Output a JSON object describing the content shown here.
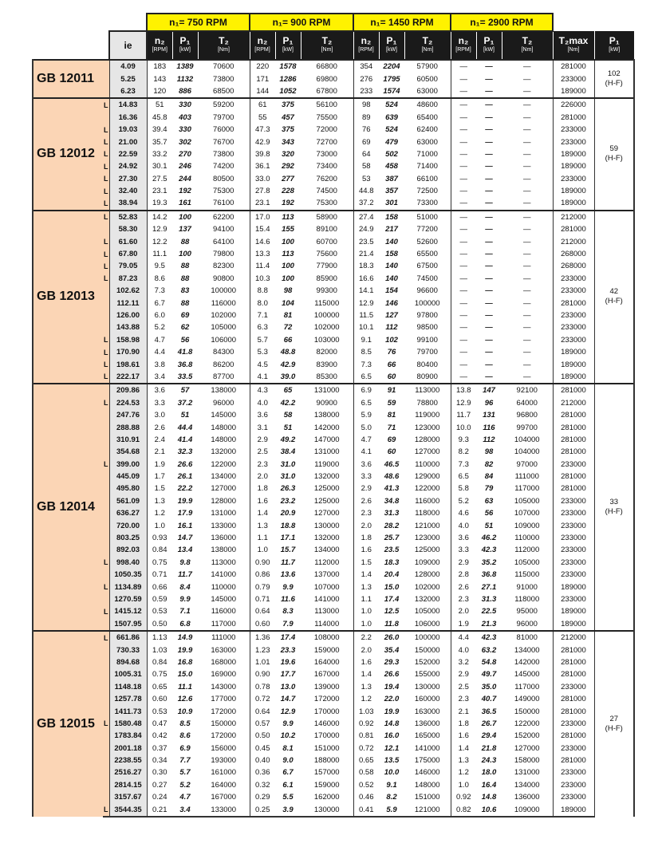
{
  "header": {
    "rpm_groups": [
      {
        "prefix": "n₁= ",
        "value": "750",
        "unit": " RPM"
      },
      {
        "prefix": "n₁= ",
        "value": "900",
        "unit": " RPM"
      },
      {
        "prefix": "n₁= ",
        "value": "1450",
        "unit": " RPM"
      },
      {
        "prefix": "n₁= ",
        "value": "2900",
        "unit": " RPM"
      }
    ],
    "ie": "ie",
    "sub": [
      {
        "label": "n₂",
        "unit": "[RPM]"
      },
      {
        "label": "P₁",
        "unit": "[kW]"
      },
      {
        "label": "T₂",
        "unit": "[Nm]"
      }
    ],
    "t2max": {
      "label": "T₂max",
      "unit": "[Nm]"
    },
    "pt": {
      "label": "P₁",
      "unit": "[kW]"
    }
  },
  "groups": [
    {
      "name": "GB 12011",
      "pt": "102",
      "pt_note": "(H-F)",
      "rows": [
        [
          "",
          "4.09",
          "183",
          "1389",
          "70600",
          "220",
          "1578",
          "66800",
          "354",
          "2204",
          "57900",
          "—",
          "—",
          "—",
          "281000"
        ],
        [
          "",
          "5.25",
          "143",
          "1132",
          "73800",
          "171",
          "1286",
          "69800",
          "276",
          "1795",
          "60500",
          "—",
          "—",
          "—",
          "233000"
        ],
        [
          "",
          "6.23",
          "120",
          "886",
          "68500",
          "144",
          "1052",
          "67800",
          "233",
          "1574",
          "63000",
          "—",
          "—",
          "—",
          "189000"
        ]
      ]
    },
    {
      "name": "GB 12012",
      "pt": "59",
      "pt_note": "(H-F)",
      "rows": [
        [
          "L",
          "14.83",
          "51",
          "330",
          "59200",
          "61",
          "375",
          "56100",
          "98",
          "524",
          "48600",
          "—",
          "—",
          "—",
          "226000"
        ],
        [
          "",
          "16.36",
          "45.8",
          "403",
          "79700",
          "55",
          "457",
          "75500",
          "89",
          "639",
          "65400",
          "—",
          "—",
          "—",
          "281000"
        ],
        [
          "L",
          "19.03",
          "39.4",
          "330",
          "76000",
          "47.3",
          "375",
          "72000",
          "76",
          "524",
          "62400",
          "—",
          "—",
          "—",
          "233000"
        ],
        [
          "L",
          "21.00",
          "35.7",
          "302",
          "76700",
          "42.9",
          "343",
          "72700",
          "69",
          "479",
          "63000",
          "—",
          "—",
          "—",
          "233000"
        ],
        [
          "L",
          "22.59",
          "33.2",
          "270",
          "73800",
          "39.8",
          "320",
          "73000",
          "64",
          "502",
          "71000",
          "—",
          "—",
          "—",
          "189000"
        ],
        [
          "L",
          "24.92",
          "30.1",
          "246",
          "74200",
          "36.1",
          "292",
          "73400",
          "58",
          "458",
          "71400",
          "—",
          "—",
          "—",
          "189000"
        ],
        [
          "L",
          "27.30",
          "27.5",
          "244",
          "80500",
          "33.0",
          "277",
          "76200",
          "53",
          "387",
          "66100",
          "—",
          "—",
          "—",
          "233000"
        ],
        [
          "L",
          "32.40",
          "23.1",
          "192",
          "75300",
          "27.8",
          "228",
          "74500",
          "44.8",
          "357",
          "72500",
          "—",
          "—",
          "—",
          "189000"
        ],
        [
          "L",
          "38.94",
          "19.3",
          "161",
          "76100",
          "23.1",
          "192",
          "75300",
          "37.2",
          "301",
          "73300",
          "—",
          "—",
          "—",
          "189000"
        ]
      ]
    },
    {
      "name": "GB 12013",
      "pt": "42",
      "pt_note": "(H-F)",
      "rows": [
        [
          "L",
          "52.83",
          "14.2",
          "100",
          "62200",
          "17.0",
          "113",
          "58900",
          "27.4",
          "158",
          "51000",
          "—",
          "—",
          "—",
          "212000"
        ],
        [
          "",
          "58.30",
          "12.9",
          "137",
          "94100",
          "15.4",
          "155",
          "89100",
          "24.9",
          "217",
          "77200",
          "—",
          "—",
          "—",
          "281000"
        ],
        [
          "L",
          "61.60",
          "12.2",
          "88",
          "64100",
          "14.6",
          "100",
          "60700",
          "23.5",
          "140",
          "52600",
          "—",
          "—",
          "—",
          "212000"
        ],
        [
          "L",
          "67.80",
          "11.1",
          "100",
          "79800",
          "13.3",
          "113",
          "75600",
          "21.4",
          "158",
          "65500",
          "—",
          "—",
          "—",
          "268000"
        ],
        [
          "L",
          "79.05",
          "9.5",
          "88",
          "82300",
          "11.4",
          "100",
          "77900",
          "18.3",
          "140",
          "67500",
          "—",
          "—",
          "—",
          "268000"
        ],
        [
          "L",
          "87.23",
          "8.6",
          "88",
          "90800",
          "10.3",
          "100",
          "85900",
          "16.6",
          "140",
          "74500",
          "—",
          "—",
          "—",
          "233000"
        ],
        [
          "",
          "102.62",
          "7.3",
          "83",
          "100000",
          "8.8",
          "98",
          "99300",
          "14.1",
          "154",
          "96600",
          "—",
          "—",
          "—",
          "233000"
        ],
        [
          "",
          "112.11",
          "6.7",
          "88",
          "116000",
          "8.0",
          "104",
          "115000",
          "12.9",
          "146",
          "100000",
          "—",
          "—",
          "—",
          "281000"
        ],
        [
          "",
          "126.00",
          "6.0",
          "69",
          "102000",
          "7.1",
          "81",
          "100000",
          "11.5",
          "127",
          "97800",
          "—",
          "—",
          "—",
          "233000"
        ],
        [
          "",
          "143.88",
          "5.2",
          "62",
          "105000",
          "6.3",
          "72",
          "102000",
          "10.1",
          "112",
          "98500",
          "—",
          "—",
          "—",
          "233000"
        ],
        [
          "L",
          "158.98",
          "4.7",
          "56",
          "106000",
          "5.7",
          "66",
          "103000",
          "9.1",
          "102",
          "99100",
          "—",
          "—",
          "—",
          "233000"
        ],
        [
          "L",
          "170.90",
          "4.4",
          "41.8",
          "84300",
          "5.3",
          "48.8",
          "82000",
          "8.5",
          "76",
          "79700",
          "—",
          "—",
          "—",
          "189000"
        ],
        [
          "L",
          "198.61",
          "3.8",
          "36.8",
          "86200",
          "4.5",
          "42.9",
          "83900",
          "7.3",
          "66",
          "80400",
          "—",
          "—",
          "—",
          "189000"
        ],
        [
          "L",
          "222.17",
          "3.4",
          "33.5",
          "87700",
          "4.1",
          "39.0",
          "85300",
          "6.5",
          "60",
          "80900",
          "—",
          "—",
          "—",
          "189000"
        ]
      ]
    },
    {
      "name": "GB 12014",
      "pt": "33",
      "pt_note": "(H-F)",
      "rows": [
        [
          "",
          "209.86",
          "3.6",
          "57",
          "138000",
          "4.3",
          "65",
          "131000",
          "6.9",
          "91",
          "113000",
          "13.8",
          "147",
          "92100",
          "281000"
        ],
        [
          "L",
          "224.53",
          "3.3",
          "37.2",
          "96000",
          "4.0",
          "42.2",
          "90900",
          "6.5",
          "59",
          "78800",
          "12.9",
          "96",
          "64000",
          "212000"
        ],
        [
          "",
          "247.76",
          "3.0",
          "51",
          "145000",
          "3.6",
          "58",
          "138000",
          "5.9",
          "81",
          "119000",
          "11.7",
          "131",
          "96800",
          "281000"
        ],
        [
          "",
          "288.88",
          "2.6",
          "44.4",
          "148000",
          "3.1",
          "51",
          "142000",
          "5.0",
          "71",
          "123000",
          "10.0",
          "116",
          "99700",
          "281000"
        ],
        [
          "",
          "310.91",
          "2.4",
          "41.4",
          "148000",
          "2.9",
          "49.2",
          "147000",
          "4.7",
          "69",
          "128000",
          "9.3",
          "112",
          "104000",
          "281000"
        ],
        [
          "",
          "354.68",
          "2.1",
          "32.3",
          "132000",
          "2.5",
          "38.4",
          "131000",
          "4.1",
          "60",
          "127000",
          "8.2",
          "98",
          "104000",
          "281000"
        ],
        [
          "L",
          "399.00",
          "1.9",
          "26.6",
          "122000",
          "2.3",
          "31.0",
          "119000",
          "3.6",
          "46.5",
          "110000",
          "7.3",
          "82",
          "97000",
          "233000"
        ],
        [
          "",
          "445.09",
          "1.7",
          "26.1",
          "134000",
          "2.0",
          "31.0",
          "132000",
          "3.3",
          "48.6",
          "129000",
          "6.5",
          "84",
          "111000",
          "281000"
        ],
        [
          "",
          "495.80",
          "1.5",
          "22.2",
          "127000",
          "1.8",
          "26.3",
          "125000",
          "2.9",
          "41.3",
          "122000",
          "5.8",
          "79",
          "117000",
          "281000"
        ],
        [
          "",
          "561.09",
          "1.3",
          "19.9",
          "128000",
          "1.6",
          "23.2",
          "125000",
          "2.6",
          "34.8",
          "116000",
          "5.2",
          "63",
          "105000",
          "233000"
        ],
        [
          "",
          "636.27",
          "1.2",
          "17.9",
          "131000",
          "1.4",
          "20.9",
          "127000",
          "2.3",
          "31.3",
          "118000",
          "4.6",
          "56",
          "107000",
          "233000"
        ],
        [
          "",
          "720.00",
          "1.0",
          "16.1",
          "133000",
          "1.3",
          "18.8",
          "130000",
          "2.0",
          "28.2",
          "121000",
          "4.0",
          "51",
          "109000",
          "233000"
        ],
        [
          "",
          "803.25",
          "0.93",
          "14.7",
          "136000",
          "1.1",
          "17.1",
          "132000",
          "1.8",
          "25.7",
          "123000",
          "3.6",
          "46.2",
          "110000",
          "233000"
        ],
        [
          "",
          "892.03",
          "0.84",
          "13.4",
          "138000",
          "1.0",
          "15.7",
          "134000",
          "1.6",
          "23.5",
          "125000",
          "3.3",
          "42.3",
          "112000",
          "233000"
        ],
        [
          "L",
          "998.40",
          "0.75",
          "9.8",
          "113000",
          "0.90",
          "11.7",
          "112000",
          "1.5",
          "18.3",
          "109000",
          "2.9",
          "35.2",
          "105000",
          "233000"
        ],
        [
          "",
          "1050.35",
          "0.71",
          "11.7",
          "141000",
          "0.86",
          "13.6",
          "137000",
          "1.4",
          "20.4",
          "128000",
          "2.8",
          "36.8",
          "115000",
          "233000"
        ],
        [
          "L",
          "1134.89",
          "0.66",
          "8.4",
          "110000",
          "0.79",
          "9.9",
          "107000",
          "1.3",
          "15.0",
          "102000",
          "2.6",
          "27.1",
          "91000",
          "189000"
        ],
        [
          "",
          "1270.59",
          "0.59",
          "9.9",
          "145000",
          "0.71",
          "11.6",
          "141000",
          "1.1",
          "17.4",
          "132000",
          "2.3",
          "31.3",
          "118000",
          "233000"
        ],
        [
          "L",
          "1415.12",
          "0.53",
          "7.1",
          "116000",
          "0.64",
          "8.3",
          "113000",
          "1.0",
          "12.5",
          "105000",
          "2.0",
          "22.5",
          "95000",
          "189000"
        ],
        [
          "",
          "1507.95",
          "0.50",
          "6.8",
          "117000",
          "0.60",
          "7.9",
          "114000",
          "1.0",
          "11.8",
          "106000",
          "1.9",
          "21.3",
          "96000",
          "189000"
        ]
      ]
    },
    {
      "name": "GB 12015",
      "pt": "27",
      "pt_note": "(H-F)",
      "rows": [
        [
          "L",
          "661.86",
          "1.13",
          "14.9",
          "111000",
          "1.36",
          "17.4",
          "108000",
          "2.2",
          "26.0",
          "100000",
          "4.4",
          "42.3",
          "81000",
          "212000"
        ],
        [
          "",
          "730.33",
          "1.03",
          "19.9",
          "163000",
          "1.23",
          "23.3",
          "159000",
          "2.0",
          "35.4",
          "150000",
          "4.0",
          "63.2",
          "134000",
          "281000"
        ],
        [
          "",
          "894.68",
          "0.84",
          "16.8",
          "168000",
          "1.01",
          "19.6",
          "164000",
          "1.6",
          "29.3",
          "152000",
          "3.2",
          "54.8",
          "142000",
          "281000"
        ],
        [
          "",
          "1005.31",
          "0.75",
          "15.0",
          "169000",
          "0.90",
          "17.7",
          "167000",
          "1.4",
          "26.6",
          "155000",
          "2.9",
          "49.7",
          "145000",
          "281000"
        ],
        [
          "",
          "1148.18",
          "0.65",
          "11.1",
          "143000",
          "0.78",
          "13.0",
          "139000",
          "1.3",
          "19.4",
          "130000",
          "2.5",
          "35.0",
          "117000",
          "233000"
        ],
        [
          "",
          "1257.78",
          "0.60",
          "12.6",
          "177000",
          "0.72",
          "14.7",
          "172000",
          "1.2",
          "22.0",
          "160000",
          "2.3",
          "40.7",
          "149000",
          "281000"
        ],
        [
          "",
          "1411.73",
          "0.53",
          "10.9",
          "172000",
          "0.64",
          "12.9",
          "170000",
          "1.03",
          "19.9",
          "163000",
          "2.1",
          "36.5",
          "150000",
          "281000"
        ],
        [
          "L",
          "1580.48",
          "0.47",
          "8.5",
          "150000",
          "0.57",
          "9.9",
          "146000",
          "0.92",
          "14.8",
          "136000",
          "1.8",
          "26.7",
          "122000",
          "233000"
        ],
        [
          "",
          "1783.84",
          "0.42",
          "8.6",
          "172000",
          "0.50",
          "10.2",
          "170000",
          "0.81",
          "16.0",
          "165000",
          "1.6",
          "29.4",
          "152000",
          "281000"
        ],
        [
          "",
          "2001.18",
          "0.37",
          "6.9",
          "156000",
          "0.45",
          "8.1",
          "151000",
          "0.72",
          "12.1",
          "141000",
          "1.4",
          "21.8",
          "127000",
          "233000"
        ],
        [
          "",
          "2238.55",
          "0.34",
          "7.7",
          "193000",
          "0.40",
          "9.0",
          "188000",
          "0.65",
          "13.5",
          "175000",
          "1.3",
          "24.3",
          "158000",
          "281000"
        ],
        [
          "",
          "2516.27",
          "0.30",
          "5.7",
          "161000",
          "0.36",
          "6.7",
          "157000",
          "0.58",
          "10.0",
          "146000",
          "1.2",
          "18.0",
          "131000",
          "233000"
        ],
        [
          "",
          "2814.15",
          "0.27",
          "5.2",
          "164000",
          "0.32",
          "6.1",
          "159000",
          "0.52",
          "9.1",
          "148000",
          "1.0",
          "16.4",
          "134000",
          "233000"
        ],
        [
          "",
          "3157.67",
          "0.24",
          "4.7",
          "167000",
          "0.29",
          "5.5",
          "162000",
          "0.46",
          "8.2",
          "151000",
          "0.92",
          "14.8",
          "136000",
          "233000"
        ],
        [
          "L",
          "3544.35",
          "0.21",
          "3.4",
          "133000",
          "0.25",
          "3.9",
          "130000",
          "0.41",
          "5.9",
          "121000",
          "0.82",
          "10.6",
          "109000",
          "189000"
        ]
      ]
    }
  ],
  "colors": {
    "rpm_header": "#fff200",
    "group_label": "#fbd5b5",
    "ie_column": "#e6e6e6",
    "column_header": "#1a1a1a"
  }
}
